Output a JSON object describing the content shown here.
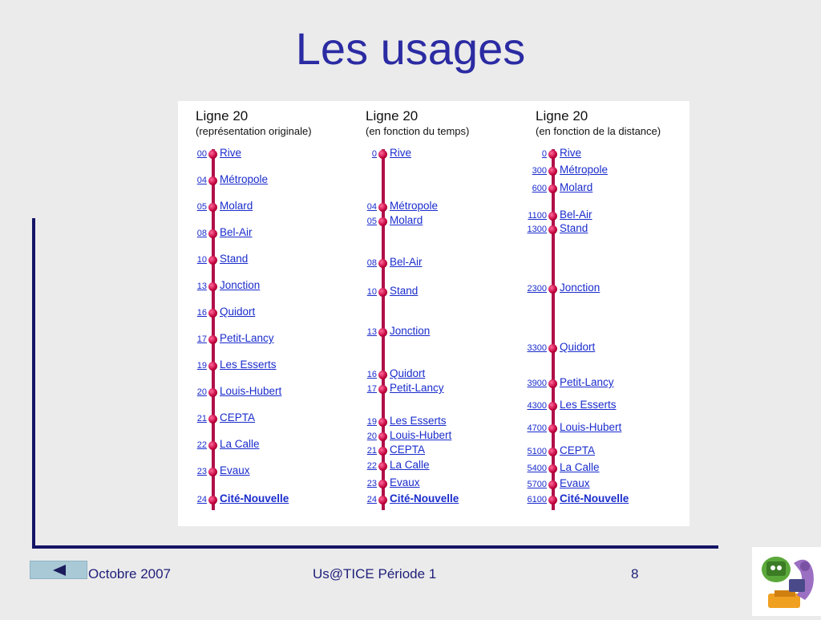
{
  "slide": {
    "title": "Les usages",
    "footer_left": "Octobre 2007",
    "footer_center": "Us@TICE Période 1",
    "footer_page": "8"
  },
  "columns": [
    {
      "title": "Ligne  20",
      "subtitle": "(représentation originale)",
      "stops": [
        {
          "num": "00",
          "name": "Rive"
        },
        {
          "num": "04",
          "name": "Métropole"
        },
        {
          "num": "05",
          "name": "Molard"
        },
        {
          "num": "08",
          "name": "Bel-Air"
        },
        {
          "num": "10",
          "name": "Stand"
        },
        {
          "num": "13",
          "name": "Jonction"
        },
        {
          "num": "16",
          "name": "Quidort"
        },
        {
          "num": "17",
          "name": "Petit-Lancy"
        },
        {
          "num": "19",
          "name": "Les Esserts"
        },
        {
          "num": "20",
          "name": "Louis-Hubert"
        },
        {
          "num": "21",
          "name": "CEPTA"
        },
        {
          "num": "22",
          "name": "La Calle"
        },
        {
          "num": "23",
          "name": "Evaux"
        },
        {
          "num": "24",
          "name": " Cité-Nouvelle"
        }
      ]
    },
    {
      "title": "Ligne  20",
      "subtitle": "(en fonction du temps)",
      "stops": [
        {
          "num": "0",
          "name": "Rive"
        },
        {
          "num": "04",
          "name": "Métropole"
        },
        {
          "num": "05",
          "name": "Molard"
        },
        {
          "num": "08",
          "name": "Bel-Air"
        },
        {
          "num": "10",
          "name": "Stand"
        },
        {
          "num": "13",
          "name": "Jonction"
        },
        {
          "num": "16",
          "name": "Quidort"
        },
        {
          "num": "17",
          "name": "Petit-Lancy"
        },
        {
          "num": "19",
          "name": "Les Esserts"
        },
        {
          "num": "20",
          "name": "Louis-Hubert"
        },
        {
          "num": "21",
          "name": "CEPTA"
        },
        {
          "num": "22",
          "name": "La Calle"
        },
        {
          "num": "23",
          "name": "Evaux"
        },
        {
          "num": "24",
          "name": " Cité-Nouvelle"
        }
      ]
    },
    {
      "title": "Ligne  20",
      "subtitle": "(en fonction de la distance)",
      "stops": [
        {
          "num": "0",
          "name": "Rive"
        },
        {
          "num": "300",
          "name": "Métropole"
        },
        {
          "num": "600",
          "name": "Molard"
        },
        {
          "num": "1100",
          "name": "Bel-Air"
        },
        {
          "num": "1300",
          "name": "Stand"
        },
        {
          "num": "2300",
          "name": "Jonction"
        },
        {
          "num": "3300",
          "name": "Quidort"
        },
        {
          "num": "3900",
          "name": "Petit-Lancy"
        },
        {
          "num": "4300",
          "name": "Les Esserts"
        },
        {
          "num": "4700",
          "name": "Louis-Hubert"
        },
        {
          "num": "5100",
          "name": "CEPTA"
        },
        {
          "num": "5400",
          "name": "La Calle"
        },
        {
          "num": "5700",
          "name": "Evaux"
        },
        {
          "num": "6100",
          "name": " Cité-Nouvelle"
        }
      ]
    }
  ],
  "colors": {
    "title": "#2b2ba3",
    "line": "#b0104a",
    "link": "#1a2ccc",
    "axis": "#141466"
  },
  "icons": {
    "nav_back": "triangle-left-icon",
    "mascot": "mascot-illustration"
  }
}
